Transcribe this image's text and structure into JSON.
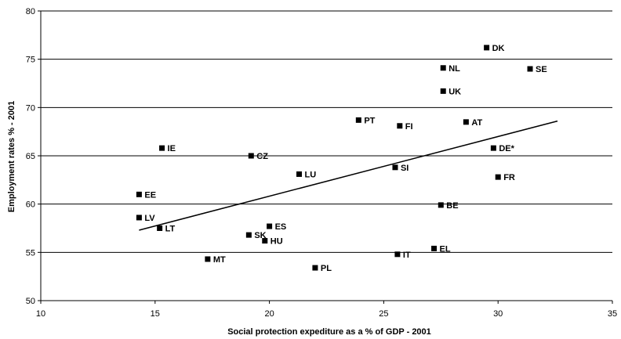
{
  "chart_data": {
    "type": "scatter",
    "xlabel": "Social protection expediture as a % of GDP - 2001",
    "ylabel": "Employment rates % - 2001",
    "xlim": [
      10,
      35
    ],
    "ylim": [
      50,
      80
    ],
    "xticks": [
      10,
      15,
      20,
      25,
      30,
      35
    ],
    "yticks": [
      50,
      55,
      60,
      65,
      70,
      75,
      80
    ],
    "grid": "horizontal",
    "points": [
      {
        "label": "DK",
        "x": 29.5,
        "y": 76.2
      },
      {
        "label": "NL",
        "x": 27.6,
        "y": 74.1
      },
      {
        "label": "SE",
        "x": 31.4,
        "y": 74.0
      },
      {
        "label": "UK",
        "x": 27.6,
        "y": 71.7
      },
      {
        "label": "PT",
        "x": 23.9,
        "y": 68.7
      },
      {
        "label": "FI",
        "x": 25.7,
        "y": 68.1
      },
      {
        "label": "AT",
        "x": 28.6,
        "y": 68.5
      },
      {
        "label": "IE",
        "x": 15.3,
        "y": 65.8
      },
      {
        "label": "DE*",
        "x": 29.8,
        "y": 65.8
      },
      {
        "label": "CZ",
        "x": 19.2,
        "y": 65.0
      },
      {
        "label": "SI",
        "x": 25.5,
        "y": 63.8
      },
      {
        "label": "LU",
        "x": 21.3,
        "y": 63.1
      },
      {
        "label": "FR",
        "x": 30.0,
        "y": 62.8
      },
      {
        "label": "EE",
        "x": 14.3,
        "y": 61.0
      },
      {
        "label": "BE",
        "x": 27.5,
        "y": 59.9
      },
      {
        "label": "LV",
        "x": 14.3,
        "y": 58.6
      },
      {
        "label": "ES",
        "x": 20.0,
        "y": 57.7
      },
      {
        "label": "LT",
        "x": 15.2,
        "y": 57.5
      },
      {
        "label": "SK",
        "x": 19.1,
        "y": 56.8
      },
      {
        "label": "HU",
        "x": 19.8,
        "y": 56.2
      },
      {
        "label": "EL",
        "x": 27.2,
        "y": 55.4
      },
      {
        "label": "IT",
        "x": 25.6,
        "y": 54.8
      },
      {
        "label": "MT",
        "x": 17.3,
        "y": 54.3
      },
      {
        "label": "PL",
        "x": 22.0,
        "y": 53.4
      }
    ],
    "trendline": {
      "x": [
        14.3,
        32.6
      ],
      "y": [
        57.3,
        68.6
      ]
    }
  }
}
